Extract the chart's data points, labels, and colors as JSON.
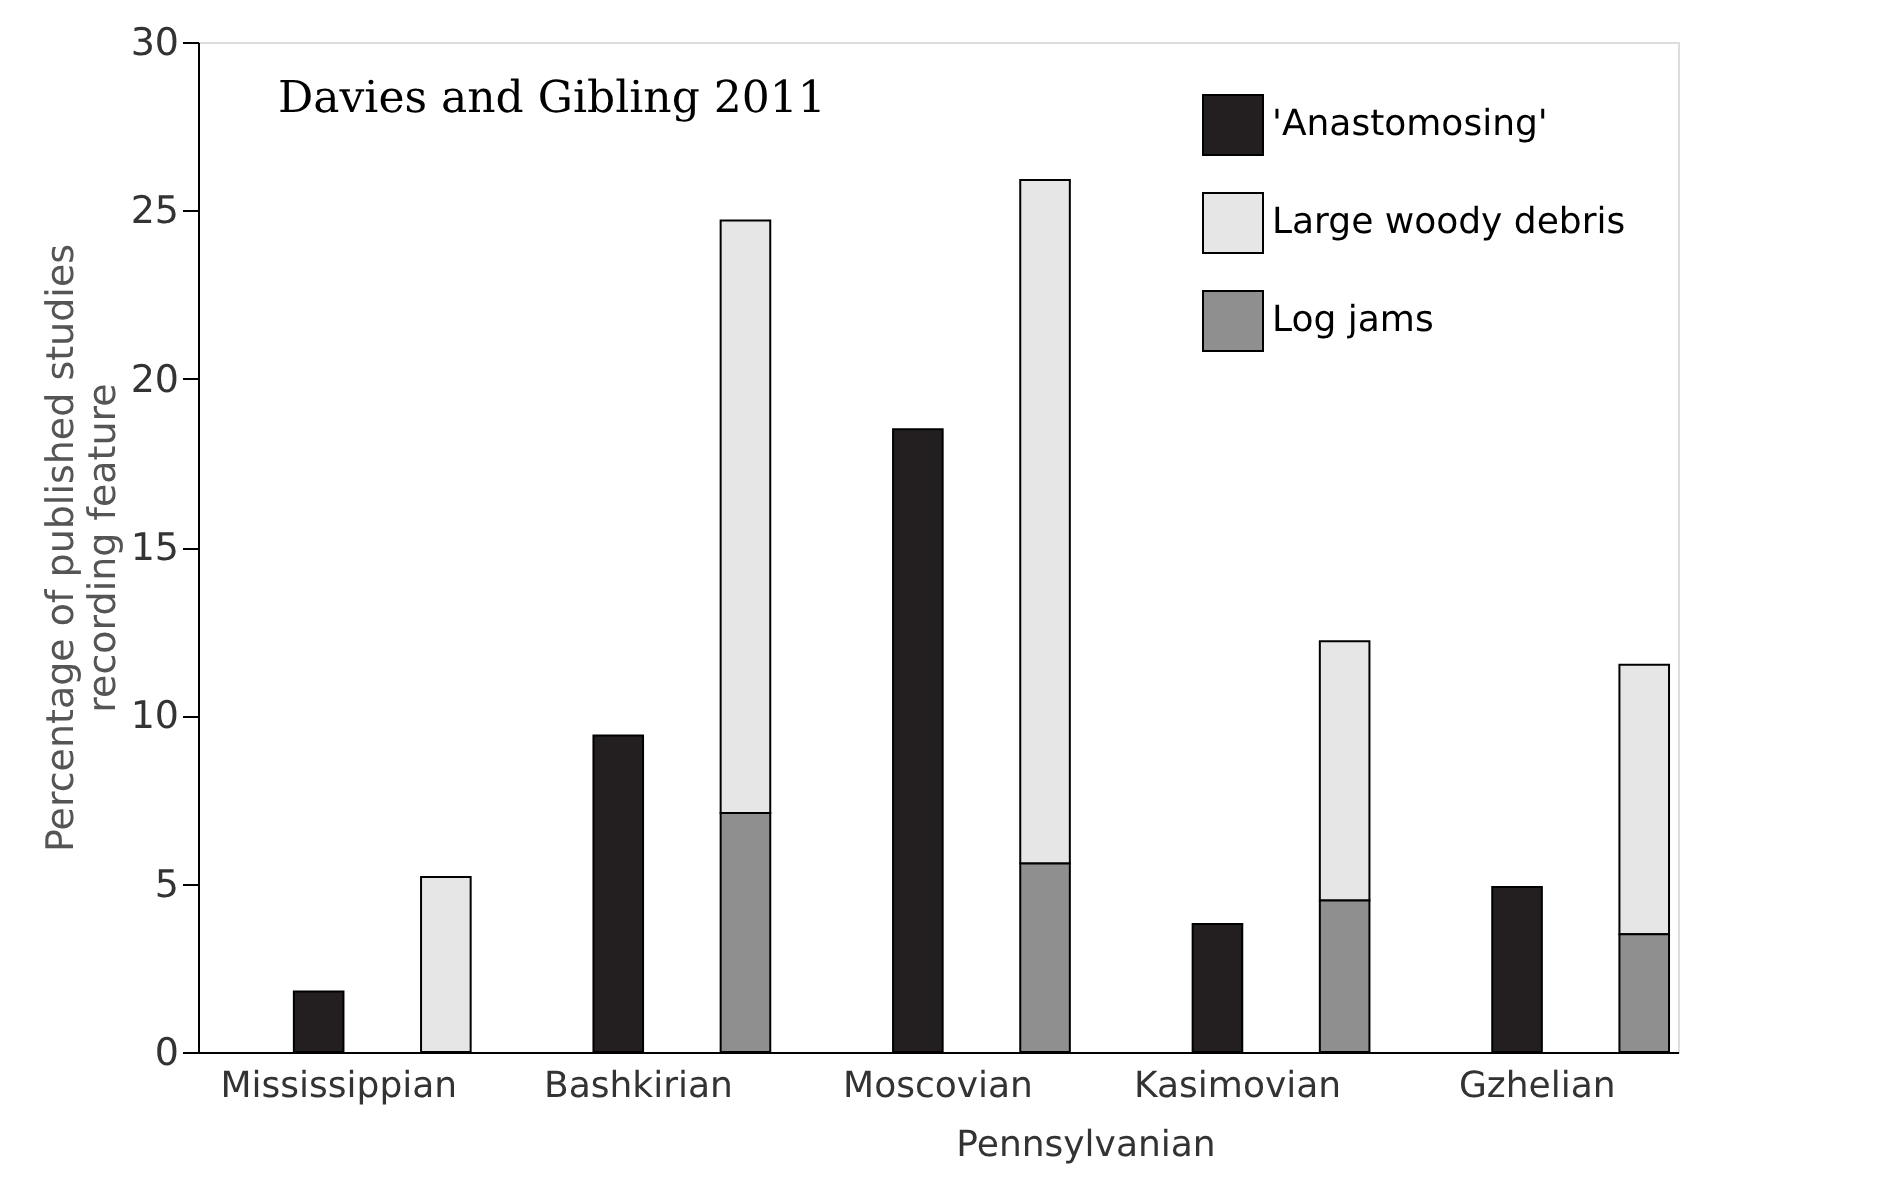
{
  "chart_data": {
    "type": "bar",
    "ylabel": "Percentage of published studies\nrecording feature",
    "categories": [
      "Mississippian",
      "Bashkirian",
      "Moscovian",
      "Kasimovian",
      "Gzhelian"
    ],
    "series": [
      {
        "name": "'Anastomosing'",
        "color": "#231f20",
        "values": [
          1.8,
          9.4,
          18.5,
          3.8,
          4.9
        ]
      },
      {
        "name": "Large woody debris",
        "color": "#e6e6e6",
        "values": [
          5.2,
          17.6,
          20.3,
          7.7,
          8.0
        ],
        "base": [
          0,
          7.1,
          5.6,
          4.5,
          3.5
        ]
      },
      {
        "name": "Log jams",
        "color": "#8f8f8f",
        "values": [
          null,
          7.1,
          5.6,
          4.5,
          3.5
        ]
      }
    ],
    "ylim": [
      0,
      30
    ],
    "yticks": [
      0,
      5,
      10,
      15,
      20,
      25,
      30
    ],
    "grid": false,
    "legend": "top right",
    "annotations": [
      "Davies and Gibling 2011",
      "Pennsylvanian"
    ]
  }
}
